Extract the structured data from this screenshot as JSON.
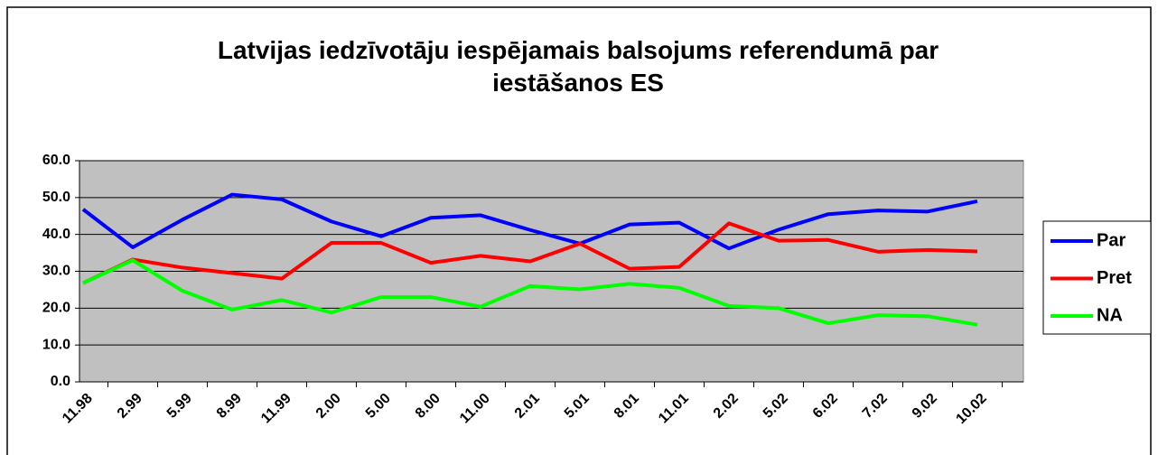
{
  "chart_data": {
    "type": "line",
    "title": "Latvijas iedzīvotāju iespējamais balsojums referendumā par iestāšanos ES",
    "categories": [
      "11.98",
      "2.99",
      "5.99",
      "8.99",
      "11.99",
      "2.00",
      "5.00",
      "8.00",
      "11.00",
      "2.01",
      "5.01",
      "8.01",
      "11.01",
      "2.02",
      "5.02",
      "6.02",
      "7.02",
      "9.02",
      "10.02"
    ],
    "series": [
      {
        "name": "Par",
        "color": "#0000ff",
        "values": [
          46.8,
          36.5,
          44,
          50.8,
          49.5,
          43.5,
          39.5,
          44.5,
          45.2,
          41.2,
          37.5,
          42.7,
          43.2,
          36.2,
          41.3,
          45.5,
          46.5,
          46.2,
          49
        ]
      },
      {
        "name": "Pret",
        "color": "#ff0000",
        "values": [
          26.8,
          33.2,
          31,
          29.5,
          28,
          37.7,
          37.7,
          32.3,
          34.2,
          32.7,
          37.5,
          30.7,
          31.2,
          43,
          38.3,
          38.5,
          35.3,
          35.8,
          35.4
        ]
      },
      {
        "name": "NA",
        "color": "#00ff00",
        "values": [
          26.8,
          33,
          24.7,
          19.6,
          22.2,
          18.8,
          23,
          23,
          20.4,
          26,
          25.1,
          26.6,
          25.5,
          20.6,
          20,
          15.9,
          18.1,
          17.8,
          15.5
        ]
      }
    ],
    "ylim": [
      0,
      60
    ],
    "yticks": [
      {
        "value": 0,
        "label": "0.0"
      },
      {
        "value": 10,
        "label": "10.0"
      },
      {
        "value": 20,
        "label": "20.0"
      },
      {
        "value": 30,
        "label": "30.0"
      },
      {
        "value": 40,
        "label": "40.0"
      },
      {
        "value": 50,
        "label": "50.0"
      },
      {
        "value": 60,
        "label": "60.0"
      }
    ],
    "grid": true,
    "legend": "right",
    "background": "#c0c0c0"
  }
}
